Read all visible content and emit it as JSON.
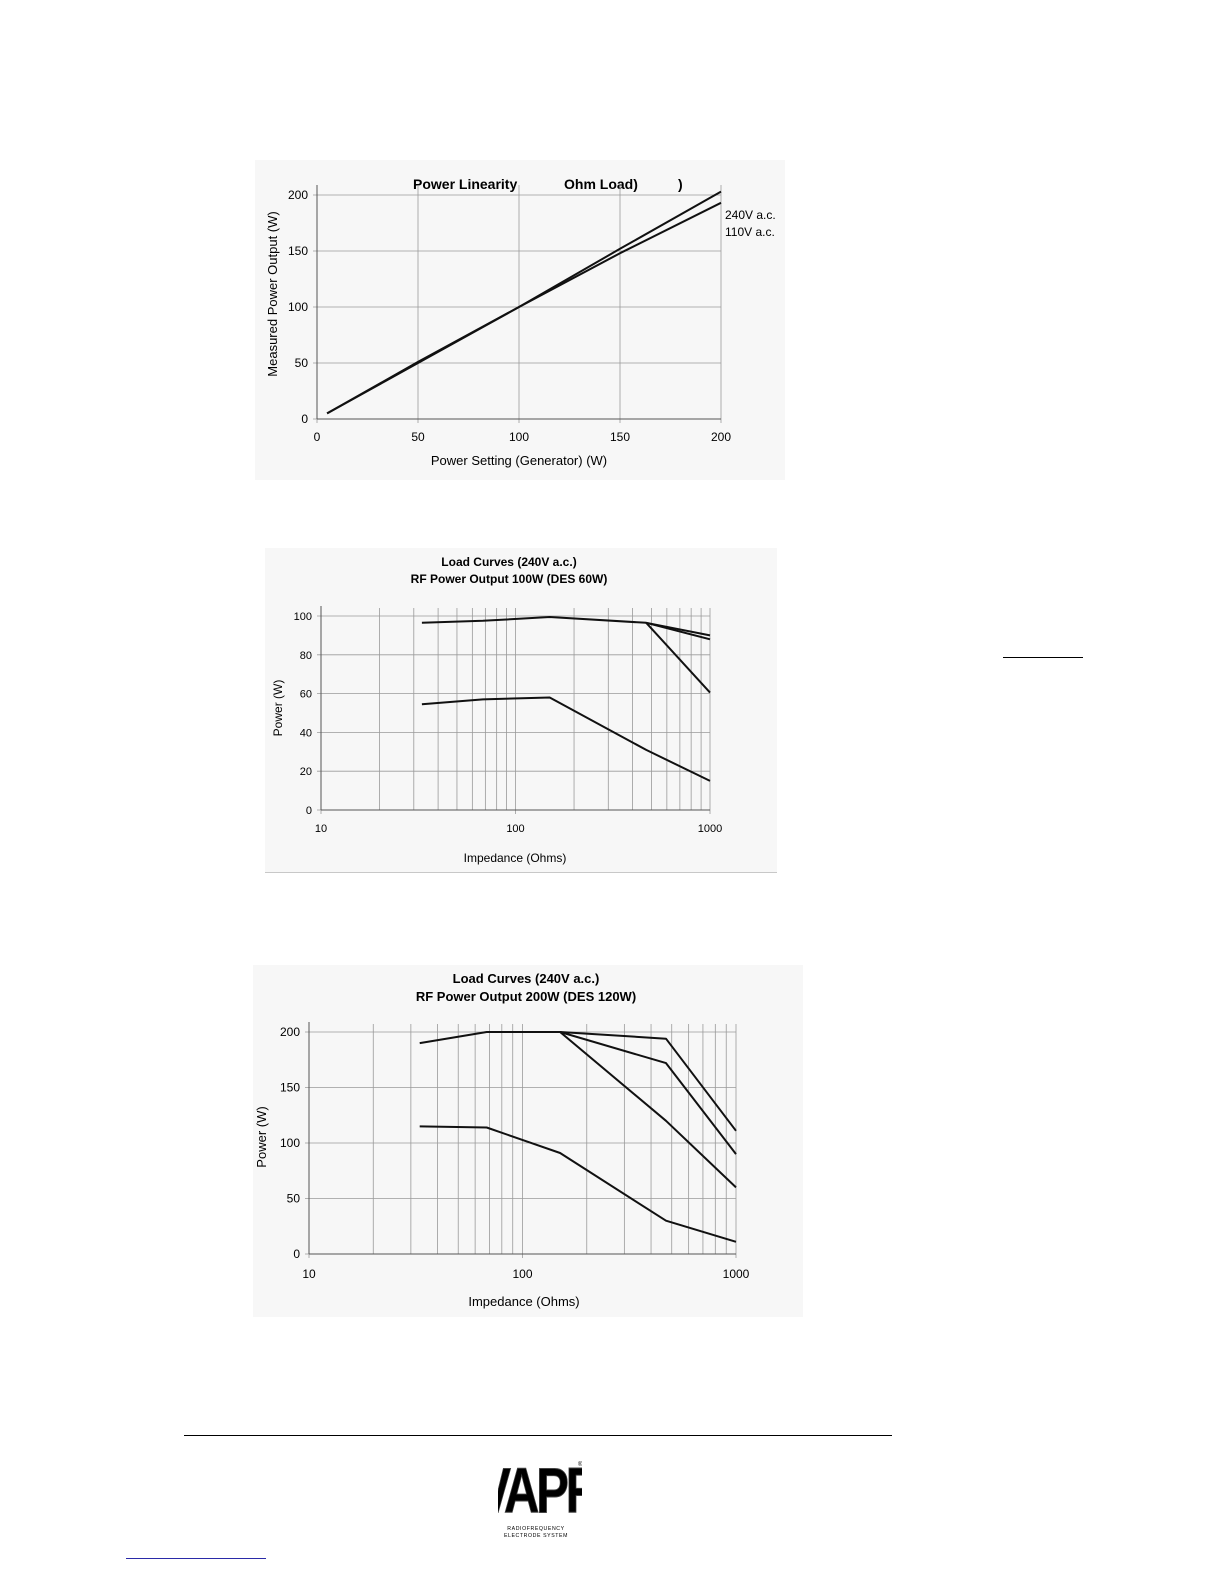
{
  "chart_data": [
    {
      "type": "line",
      "title": "Power Linearity",
      "title_part2": "Ohm Load)",
      "title_part3": ")",
      "xlabel": "Power Setting (Generator) (W)",
      "ylabel": "Measured Power Output (W)",
      "xlim": [
        0,
        200
      ],
      "ylim": [
        0,
        200
      ],
      "xticks": [
        0,
        50,
        100,
        150,
        200
      ],
      "yticks": [
        0,
        50,
        100,
        150,
        200
      ],
      "grid": true,
      "legend": "right",
      "series": [
        {
          "name": "240V a.c.",
          "x": [
            5,
            50,
            100,
            150,
            200
          ],
          "y": [
            5,
            50,
            100,
            152,
            203
          ]
        },
        {
          "name": "110V a.c.",
          "x": [
            5,
            50,
            100,
            150,
            200
          ],
          "y": [
            5,
            51,
            100,
            148,
            193
          ]
        }
      ]
    },
    {
      "type": "line",
      "title": "Load Curves (240V a.c.)",
      "subtitle": "RF Power Output 100W (DES 60W)",
      "xlabel": "Impedance (Ohms)",
      "ylabel": "Power (W)",
      "xscale": "log",
      "xlim": [
        10,
        1000
      ],
      "ylim": [
        0,
        100
      ],
      "xticks": [
        10,
        100,
        1000
      ],
      "yticks": [
        0,
        20,
        40,
        60,
        80,
        100
      ],
      "grid": true,
      "series": [
        {
          "x": [
            33,
            68,
            150,
            470,
            1000
          ],
          "y": [
            96.5,
            97.5,
            99.5,
            96.5,
            90
          ]
        },
        {
          "x": [
            470,
            1000
          ],
          "y": [
            96.5,
            88
          ]
        },
        {
          "x": [
            470,
            1000
          ],
          "y": [
            96.5,
            60.5
          ]
        },
        {
          "x": [
            33,
            68,
            150,
            470,
            1000
          ],
          "y": [
            54.5,
            57,
            58,
            31,
            15
          ]
        }
      ]
    },
    {
      "type": "line",
      "title": "Load Curves (240V a.c.)",
      "subtitle": "RF Power Output 200W (DES 120W)",
      "xlabel": "Impedance (Ohms)",
      "ylabel": "Power (W)",
      "xscale": "log",
      "xlim": [
        10,
        1000
      ],
      "ylim": [
        0,
        200
      ],
      "xticks": [
        10,
        100,
        1000
      ],
      "yticks": [
        0,
        50,
        100,
        150,
        200
      ],
      "grid": true,
      "series": [
        {
          "x": [
            33,
            68,
            150,
            470,
            1000
          ],
          "y": [
            190,
            200,
            200,
            194,
            111
          ]
        },
        {
          "x": [
            150,
            470,
            1000
          ],
          "y": [
            200,
            172,
            90
          ]
        },
        {
          "x": [
            150,
            470,
            1000
          ],
          "y": [
            200,
            120,
            60
          ]
        },
        {
          "x": [
            33,
            68,
            150,
            470,
            1000
          ],
          "y": [
            115,
            114,
            91,
            30,
            11
          ]
        }
      ]
    }
  ],
  "footer": {
    "logo_text": "VAPR",
    "logo_subtext_line1": "RADIOFREQUENCY",
    "logo_subtext_line2": "ELECTRODE SYSTEM",
    "logo_mark": "®"
  }
}
